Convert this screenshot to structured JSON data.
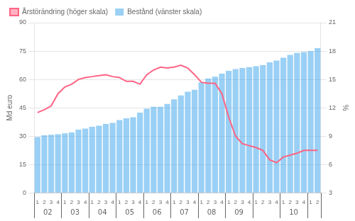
{
  "chart_data": {
    "type": "bar",
    "ylabel": "Md euro",
    "y2label": "%",
    "categories": [
      "1",
      "2",
      "3",
      "4",
      "1",
      "2",
      "3",
      "4",
      "1",
      "2",
      "3",
      "4",
      "1",
      "2",
      "3",
      "4",
      "1",
      "2",
      "3",
      "4",
      "1",
      "2",
      "3",
      "4",
      "1",
      "2",
      "3",
      "4",
      "1",
      "2",
      "3",
      "4",
      "1",
      "2",
      "3",
      "4",
      "1",
      "2",
      "3",
      "4",
      "1",
      "2"
    ],
    "category_groups": [
      {
        "label": "02",
        "size": 4
      },
      {
        "label": "03",
        "size": 4
      },
      {
        "label": "04",
        "size": 4
      },
      {
        "label": "05",
        "size": 4
      },
      {
        "label": "06",
        "size": 4
      },
      {
        "label": "07",
        "size": 4
      },
      {
        "label": "08",
        "size": 4
      },
      {
        "label": "09",
        "size": 4
      },
      {
        "label": null,
        "size": 4
      },
      {
        "label": "10",
        "size": 4
      },
      {
        "label": null,
        "size": 2
      }
    ],
    "series": [
      {
        "name": "Bestånd (vänster skala)",
        "type": "bar",
        "values": [
          29.5,
          30.5,
          30.8,
          31.0,
          31.5,
          32.0,
          33.5,
          34.0,
          35.0,
          35.5,
          36.5,
          37.0,
          38.5,
          39.5,
          40.0,
          42.5,
          44.5,
          45.5,
          45.5,
          47.0,
          49.5,
          51.5,
          53.5,
          54.5,
          58.5,
          60.5,
          61.5,
          63.0,
          64.5,
          65.5,
          66.0,
          66.5,
          67.0,
          67.5,
          69.0,
          70.0,
          71.5,
          73.0,
          74.0,
          74.5,
          75.0,
          76.5
        ]
      },
      {
        "name": "Årstörändring (höger skala)",
        "type": "line",
        "axis": "y2",
        "values": [
          11.5,
          11.8,
          12.2,
          13.5,
          14.2,
          14.5,
          15.0,
          15.2,
          15.3,
          15.4,
          15.5,
          15.3,
          15.2,
          14.8,
          14.8,
          14.5,
          15.5,
          16.0,
          16.3,
          16.2,
          16.3,
          16.5,
          16.2,
          15.5,
          14.7,
          14.6,
          14.6,
          13.5,
          11.0,
          9.0,
          8.2,
          8.0,
          7.8,
          7.5,
          6.5,
          6.2,
          6.8,
          7.0,
          7.2,
          7.5,
          7.5,
          7.5
        ]
      }
    ],
    "ylim": [
      0,
      90
    ],
    "yticks": [
      0,
      15,
      30,
      45,
      60,
      75,
      90
    ],
    "y2lim": [
      3,
      21
    ],
    "y2ticks": [
      3,
      6,
      9,
      12,
      15,
      18,
      21
    ],
    "grid": true,
    "legend": "upper left"
  }
}
